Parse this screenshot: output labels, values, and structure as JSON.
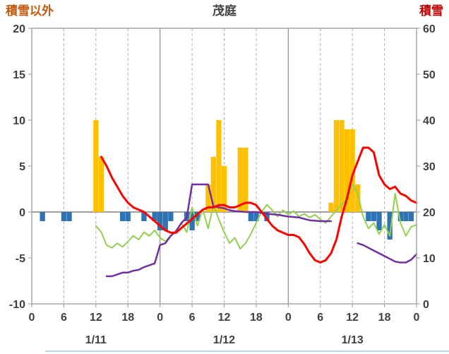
{
  "header": {
    "left_axis_label": "積雪以外",
    "title": "茂庭",
    "right_axis_label": "積雪"
  },
  "colors": {
    "left_label": "#C45911",
    "title": "#404040",
    "right_label": "#C00000",
    "axis_text": "#404040",
    "border": "#A6A6A6",
    "grid_minor": "#B3B3B3",
    "grid_major": "#8C8C8C",
    "zero_line": "#808080",
    "bar_positive": "#FFC000",
    "bar_negative": "#2E74B5",
    "line_red": "#FF0000",
    "line_green": "#92D050",
    "line_purple": "#7030A0",
    "bottom_edge": "#BDD7EE"
  },
  "chart_data": {
    "type": "composite",
    "title": "茂庭",
    "left_axis": {
      "label": "積雪以外",
      "max": 20,
      "min": -10,
      "ticks": [
        20,
        15,
        10,
        5,
        0,
        -5,
        -10
      ]
    },
    "right_axis": {
      "label": "積雪",
      "max": 60,
      "min": 0,
      "ticks": [
        60,
        50,
        40,
        30,
        20,
        10,
        0
      ]
    },
    "x_axis": {
      "min": 0,
      "max": 72,
      "tick_step": 6,
      "tick_labels": [
        "0",
        "6",
        "12",
        "18",
        "0",
        "6",
        "12",
        "18",
        "0",
        "6",
        "12",
        "18",
        "0"
      ],
      "date_labels": [
        {
          "label": "1/11",
          "hour": 12
        },
        {
          "label": "1/12",
          "hour": 36
        },
        {
          "label": "1/13",
          "hour": 60
        }
      ]
    },
    "series": [
      {
        "name": "orange-bars",
        "type": "bar",
        "axis": "left",
        "color": "#FFC000",
        "points": [
          [
            12,
            10
          ],
          [
            13,
            6
          ],
          [
            33,
            3
          ],
          [
            34,
            6
          ],
          [
            35,
            10
          ],
          [
            36,
            5
          ],
          [
            39,
            7
          ],
          [
            40,
            7
          ],
          [
            56,
            1
          ],
          [
            57,
            10
          ],
          [
            58,
            10
          ],
          [
            59,
            9
          ],
          [
            60,
            9
          ],
          [
            61,
            3
          ]
        ]
      },
      {
        "name": "blue-bars",
        "type": "bar",
        "axis": "left",
        "color": "#2E74B5",
        "points": [
          [
            2,
            -1
          ],
          [
            6,
            -1
          ],
          [
            7,
            -1
          ],
          [
            17,
            -1
          ],
          [
            18,
            -1
          ],
          [
            21,
            -1
          ],
          [
            23,
            -1
          ],
          [
            24,
            -2
          ],
          [
            25,
            -2
          ],
          [
            26,
            -1
          ],
          [
            29,
            -1
          ],
          [
            30,
            -2
          ],
          [
            31,
            -1
          ],
          [
            41,
            -1
          ],
          [
            42,
            -1
          ],
          [
            44,
            -1
          ],
          [
            63,
            -1
          ],
          [
            64,
            -1
          ],
          [
            65,
            -2
          ],
          [
            67,
            -3
          ],
          [
            69,
            -1
          ],
          [
            70,
            -1
          ],
          [
            71,
            -1
          ]
        ]
      },
      {
        "name": "green-line",
        "type": "line",
        "axis": "left",
        "color": "#92D050",
        "width": 2,
        "points": [
          [
            12,
            -1.5
          ],
          [
            13,
            -2.2
          ],
          [
            14,
            -3.6
          ],
          [
            15,
            -3.9
          ],
          [
            16,
            -3.4
          ],
          [
            17,
            -3.8
          ],
          [
            18,
            -3.2
          ],
          [
            19,
            -2.6
          ],
          [
            20,
            -3
          ],
          [
            21,
            -2.2
          ],
          [
            22,
            -2.6
          ],
          [
            23,
            -2
          ],
          [
            24,
            -2.8
          ],
          [
            25,
            -3.2
          ],
          [
            26,
            -2.6
          ],
          [
            27,
            -2
          ],
          [
            28,
            -1.2
          ],
          [
            29,
            -2.2
          ],
          [
            30,
            0.5
          ],
          [
            31,
            -1.5
          ],
          [
            32,
            0.3
          ],
          [
            33,
            -1.8
          ],
          [
            34,
            0.8
          ],
          [
            35,
            -0.8
          ],
          [
            36,
            -2.2
          ],
          [
            37,
            -3.4
          ],
          [
            38,
            -2.8
          ],
          [
            39,
            -4
          ],
          [
            40,
            -3.4
          ],
          [
            41,
            -2.4
          ],
          [
            42,
            -1.2
          ],
          [
            43,
            0
          ],
          [
            44,
            0.8
          ],
          [
            45,
            0.2
          ],
          [
            46,
            -0.5
          ],
          [
            47,
            0.2
          ],
          [
            48,
            -0.3
          ],
          [
            49,
            0.1
          ],
          [
            50,
            -0.5
          ],
          [
            51,
            -0.2
          ],
          [
            52,
            -0.6
          ],
          [
            53,
            -0.3
          ],
          [
            54,
            -0.8
          ],
          [
            55,
            -1.2
          ],
          [
            56,
            -0.5
          ],
          [
            57,
            0.2
          ],
          [
            58,
            0.8
          ],
          [
            59,
            1.5
          ],
          [
            60,
            3
          ],
          [
            61,
            2
          ],
          [
            62,
            -0.5
          ],
          [
            63,
            -1.8
          ],
          [
            64,
            -1.2
          ],
          [
            65,
            -2.4
          ],
          [
            66,
            -1.4
          ],
          [
            67,
            -2.6
          ],
          [
            68,
            2
          ],
          [
            69,
            -1.2
          ],
          [
            70,
            -2.6
          ],
          [
            71,
            -1.6
          ],
          [
            72,
            -1.4
          ]
        ]
      },
      {
        "name": "purple-line",
        "type": "line",
        "axis": "left",
        "color": "#7030A0",
        "width": 2.5,
        "points": [
          [
            14,
            -7
          ],
          [
            15,
            -7
          ],
          [
            16,
            -6.8
          ],
          [
            17,
            -6.6
          ],
          [
            18,
            -6.6
          ],
          [
            19,
            -6.4
          ],
          [
            20,
            -6.3
          ],
          [
            21,
            -6
          ],
          [
            22,
            -5.8
          ],
          [
            23,
            -5.6
          ],
          [
            24,
            -3.6
          ],
          [
            25,
            -3.4
          ],
          [
            26,
            -2.6
          ],
          [
            27,
            -2.1
          ],
          [
            28,
            -1.2
          ],
          [
            29,
            -0.6
          ],
          [
            30,
            3
          ],
          [
            31,
            3
          ],
          [
            32,
            3
          ],
          [
            33,
            3
          ],
          [
            34,
            0.6
          ],
          [
            35,
            0.5
          ],
          [
            36,
            0.4
          ],
          [
            37,
            0.2
          ],
          [
            38,
            0.1
          ],
          [
            40,
            0
          ],
          [
            42,
            0
          ],
          [
            44,
            -0.2
          ],
          [
            46,
            -0.3
          ],
          [
            48,
            -0.5
          ],
          [
            50,
            -0.6
          ],
          [
            52,
            -0.9
          ],
          [
            54,
            -1
          ],
          [
            56,
            -1
          ],
          [
            61,
            -3.4
          ],
          [
            62,
            -3.6
          ],
          [
            63,
            -3.9
          ],
          [
            64,
            -4.2
          ],
          [
            65,
            -4.5
          ],
          [
            66,
            -4.8
          ],
          [
            67,
            -5.1
          ],
          [
            68,
            -5.4
          ],
          [
            69,
            -5.5
          ],
          [
            70,
            -5.5
          ],
          [
            71,
            -5.2
          ],
          [
            72,
            -4.6
          ]
        ]
      },
      {
        "name": "red-line",
        "type": "line",
        "axis": "right",
        "color": "#FF0000",
        "width": 3,
        "points": [
          [
            13,
            32
          ],
          [
            14,
            30
          ],
          [
            15,
            27.5
          ],
          [
            16,
            25.5
          ],
          [
            17,
            23.5
          ],
          [
            18,
            22
          ],
          [
            19,
            21
          ],
          [
            20,
            20.5
          ],
          [
            21,
            20
          ],
          [
            22,
            19
          ],
          [
            23,
            18
          ],
          [
            24,
            17
          ],
          [
            25,
            16
          ],
          [
            26,
            15.5
          ],
          [
            27,
            15.5
          ],
          [
            28,
            16.5
          ],
          [
            29,
            17.5
          ],
          [
            30,
            18.5
          ],
          [
            31,
            19.5
          ],
          [
            32,
            20.5
          ],
          [
            33,
            21
          ],
          [
            34,
            21
          ],
          [
            35,
            21.5
          ],
          [
            36,
            21.5
          ],
          [
            37,
            21
          ],
          [
            38,
            21
          ],
          [
            39,
            21.5
          ],
          [
            40,
            22
          ],
          [
            41,
            22
          ],
          [
            42,
            21.5
          ],
          [
            43,
            20
          ],
          [
            44,
            18.5
          ],
          [
            45,
            17
          ],
          [
            46,
            16
          ],
          [
            47,
            15.5
          ],
          [
            48,
            15
          ],
          [
            49,
            15
          ],
          [
            50,
            14.5
          ],
          [
            51,
            13
          ],
          [
            52,
            11
          ],
          [
            53,
            9.5
          ],
          [
            54,
            9
          ],
          [
            55,
            9.5
          ],
          [
            56,
            11
          ],
          [
            57,
            14
          ],
          [
            58,
            19
          ],
          [
            59,
            23
          ],
          [
            60,
            28
          ],
          [
            61,
            31
          ],
          [
            62,
            34
          ],
          [
            63,
            34
          ],
          [
            64,
            33
          ],
          [
            65,
            28
          ],
          [
            66,
            26
          ],
          [
            67,
            25
          ],
          [
            68,
            25.5
          ],
          [
            69,
            24
          ],
          [
            70,
            23.5
          ],
          [
            71,
            22.5
          ],
          [
            72,
            22
          ]
        ]
      }
    ]
  }
}
